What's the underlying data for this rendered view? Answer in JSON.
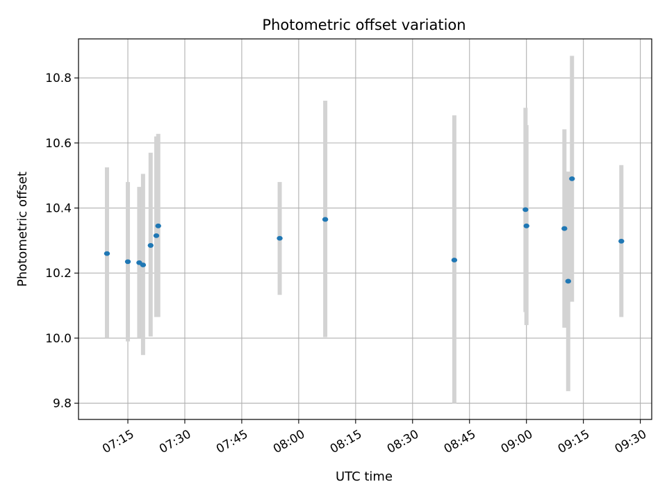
{
  "chart_data": {
    "type": "scatter",
    "title": "Photometric offset variation",
    "xlabel": "UTC time",
    "ylabel": "Photometric offset",
    "xlim": [
      "07:02",
      "09:33"
    ],
    "ylim": [
      9.75,
      10.92
    ],
    "x_ticks": [
      "07:15",
      "07:30",
      "07:45",
      "08:00",
      "08:15",
      "08:30",
      "08:45",
      "09:00",
      "09:15",
      "09:30"
    ],
    "y_ticks": [
      9.8,
      10.0,
      10.2,
      10.4,
      10.6,
      10.8
    ],
    "grid": true,
    "colors": {
      "marker": "#1f77b4",
      "errorbar": "#d3d3d3",
      "grid": "#b0b0b0"
    },
    "points": [
      {
        "x": "07:09:30",
        "y": 10.26,
        "yerr_low": 10.0,
        "yerr_high": 10.525
      },
      {
        "x": "07:15:00",
        "y": 10.235,
        "yerr_low": 9.99,
        "yerr_high": 10.48
      },
      {
        "x": "07:18:00",
        "y": 10.232,
        "yerr_low": 10.0,
        "yerr_high": 10.465
      },
      {
        "x": "07:19:00",
        "y": 10.225,
        "yerr_low": 9.948,
        "yerr_high": 10.505
      },
      {
        "x": "07:21:00",
        "y": 10.285,
        "yerr_low": 10.005,
        "yerr_high": 10.57
      },
      {
        "x": "07:22:30",
        "y": 10.315,
        "yerr_low": 10.065,
        "yerr_high": 10.62
      },
      {
        "x": "07:23:00",
        "y": 10.345,
        "yerr_low": 10.065,
        "yerr_high": 10.628
      },
      {
        "x": "07:55:00",
        "y": 10.307,
        "yerr_low": 10.133,
        "yerr_high": 10.48
      },
      {
        "x": "08:07:00",
        "y": 10.365,
        "yerr_low": 10.003,
        "yerr_high": 10.73
      },
      {
        "x": "08:41:00",
        "y": 10.24,
        "yerr_low": 9.8,
        "yerr_high": 10.685
      },
      {
        "x": "08:59:45",
        "y": 10.395,
        "yerr_low": 10.08,
        "yerr_high": 10.708
      },
      {
        "x": "09:00:00",
        "y": 10.345,
        "yerr_low": 10.04,
        "yerr_high": 10.655
      },
      {
        "x": "09:10:00",
        "y": 10.337,
        "yerr_low": 10.032,
        "yerr_high": 10.642
      },
      {
        "x": "09:11:00",
        "y": 10.175,
        "yerr_low": 9.837,
        "yerr_high": 10.512
      },
      {
        "x": "09:12:00",
        "y": 10.49,
        "yerr_low": 10.112,
        "yerr_high": 10.868
      },
      {
        "x": "09:25:00",
        "y": 10.298,
        "yerr_low": 10.065,
        "yerr_high": 10.532
      }
    ]
  }
}
